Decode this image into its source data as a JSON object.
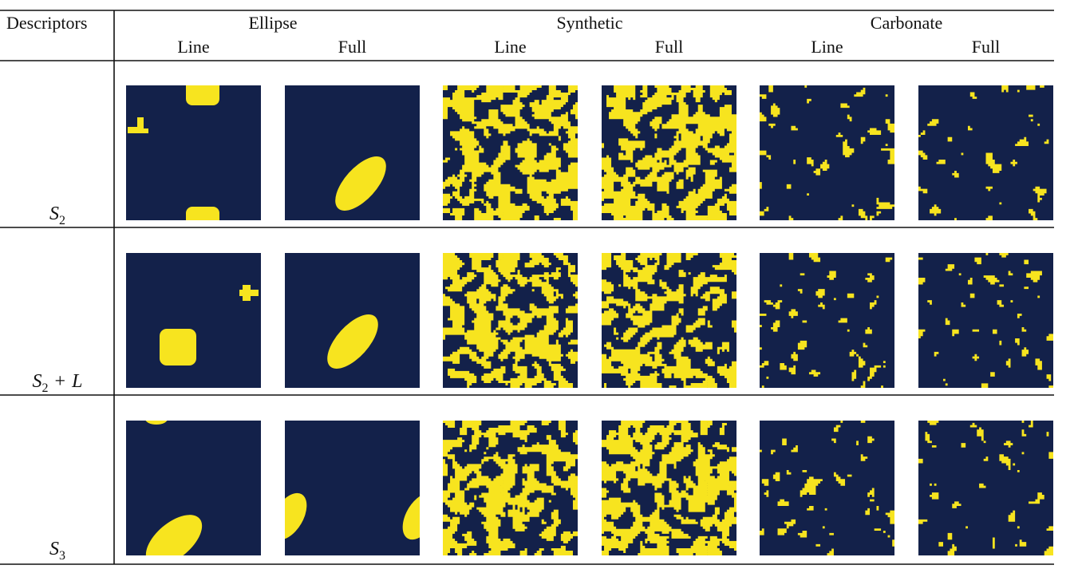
{
  "table": {
    "header": {
      "descriptor": "Descriptors",
      "groups": [
        {
          "name": "Ellipse",
          "columns": [
            "Line",
            "Full"
          ]
        },
        {
          "name": "Synthetic",
          "columns": [
            "Line",
            "Full"
          ]
        },
        {
          "name": "Carbonate",
          "columns": [
            "Line",
            "Full"
          ]
        }
      ]
    },
    "rows": [
      {
        "label": {
          "symbol": "S",
          "subscript": "2"
        }
      },
      {
        "label": {
          "symbol": "S",
          "subscript": "2",
          "operator": "+",
          "term": "L"
        }
      },
      {
        "label": {
          "symbol": "S",
          "subscript": "3"
        }
      }
    ]
  }
}
